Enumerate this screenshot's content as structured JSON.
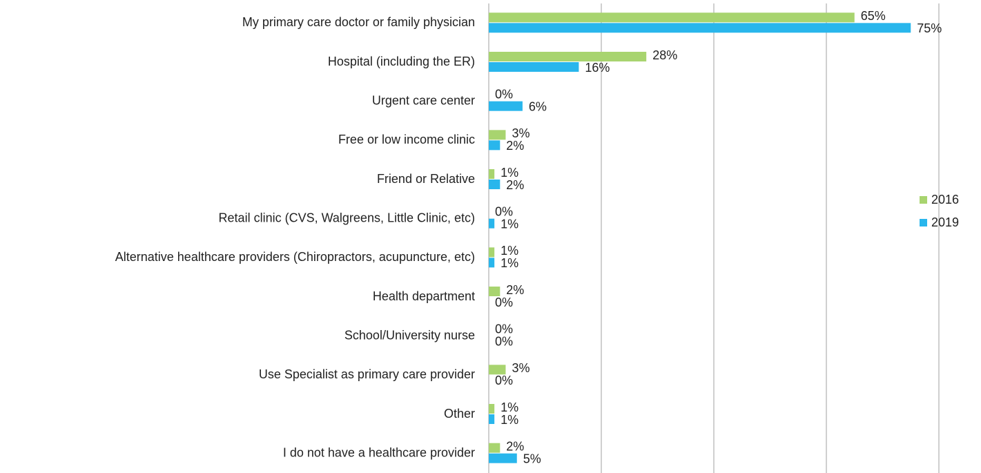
{
  "chart_data": {
    "type": "bar",
    "orientation": "horizontal",
    "categories": [
      "My primary care doctor or family physician",
      "Hospital (including the ER)",
      "Urgent care center",
      "Free or low income clinic",
      "Friend or Relative",
      "Retail clinic (CVS, Walgreens, Little Clinic, etc)",
      "Alternative healthcare providers (Chiropractors, acupuncture, etc)",
      "Health department",
      "School/University nurse",
      "Use Specialist as primary care provider",
      "Other",
      "I do not have a healthcare provider"
    ],
    "series": [
      {
        "name": "2016",
        "color": "#a8d46f",
        "values": [
          65,
          28,
          0,
          3,
          1,
          0,
          1,
          2,
          0,
          3,
          1,
          2
        ],
        "value_labels": [
          "65%",
          "28%",
          "0%",
          "3%",
          "1%",
          "0%",
          "1%",
          "2%",
          "0%",
          "3%",
          "1%",
          "2%"
        ]
      },
      {
        "name": "2019",
        "color": "#29b6ec",
        "values": [
          75,
          16,
          6,
          2,
          2,
          1,
          1,
          0,
          0,
          0,
          1,
          5
        ],
        "value_labels": [
          "75%",
          "16%",
          "6%",
          "2%",
          "2%",
          "1%",
          "1%",
          "0%",
          "0%",
          "0%",
          "1%",
          "5%"
        ]
      }
    ],
    "xlim": [
      0,
      80
    ],
    "xticks": [
      0,
      20,
      40,
      60,
      80
    ],
    "grid": true,
    "legend": "right"
  }
}
